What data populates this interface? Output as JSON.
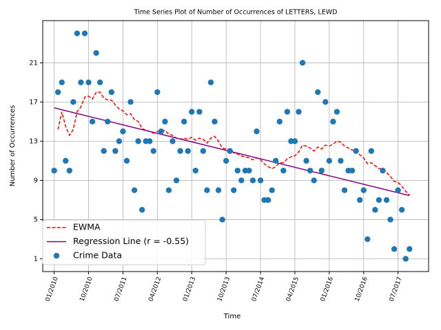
{
  "chart_data": {
    "type": "scatter",
    "title": "Time Series Plot of Number of Occurrences of LETTERS, LEWD",
    "x_label": "Time",
    "y_label": "Number of Occurrences",
    "x": [
      "2010-01",
      "2010-02",
      "2010-03",
      "2010-04",
      "2010-05",
      "2010-06",
      "2010-07",
      "2010-08",
      "2010-09",
      "2010-10",
      "2010-11",
      "2010-12",
      "2011-01",
      "2011-02",
      "2011-03",
      "2011-04",
      "2011-05",
      "2011-06",
      "2011-07",
      "2011-08",
      "2011-09",
      "2011-10",
      "2011-11",
      "2011-12",
      "2012-01",
      "2012-02",
      "2012-03",
      "2012-04",
      "2012-05",
      "2012-06",
      "2012-07",
      "2012-08",
      "2012-09",
      "2012-10",
      "2012-11",
      "2012-12",
      "2013-01",
      "2013-02",
      "2013-03",
      "2013-04",
      "2013-05",
      "2013-06",
      "2013-07",
      "2013-08",
      "2013-09",
      "2013-10",
      "2013-11",
      "2013-12",
      "2014-01",
      "2014-02",
      "2014-03",
      "2014-04",
      "2014-05",
      "2014-06",
      "2014-07",
      "2014-08",
      "2014-09",
      "2014-10",
      "2014-11",
      "2014-12",
      "2015-01",
      "2015-02",
      "2015-03",
      "2015-04",
      "2015-05",
      "2015-06",
      "2015-07",
      "2015-08",
      "2015-09",
      "2015-10",
      "2015-11",
      "2015-12",
      "2016-01",
      "2016-02",
      "2016-03",
      "2016-04",
      "2016-05",
      "2016-06",
      "2016-07",
      "2016-08",
      "2016-09",
      "2016-10",
      "2016-11",
      "2016-12",
      "2017-01",
      "2017-02",
      "2017-03",
      "2017-04",
      "2017-05",
      "2017-06",
      "2017-07",
      "2017-08",
      "2017-09",
      "2017-10"
    ],
    "series": [
      {
        "name": "EWMA",
        "type": "line",
        "color": "#ff0000",
        "linestyle": "dashed",
        "values": [
          null,
          14.2,
          16,
          14.5,
          13.6,
          14.2,
          16,
          16.5,
          17.5,
          17.6,
          17.3,
          18,
          18,
          17.4,
          17.2,
          17.2,
          16.7,
          16.3,
          16.1,
          15.7,
          15.8,
          15.2,
          15,
          14.3,
          14.1,
          14,
          13.8,
          14,
          14,
          14.1,
          13.7,
          13.6,
          13.3,
          13.2,
          13.3,
          13.2,
          13.4,
          13.1,
          13.3,
          13.2,
          12.8,
          13.3,
          13.5,
          13,
          12.3,
          12.2,
          12.2,
          11.8,
          11.7,
          11.5,
          11.4,
          11.3,
          11.1,
          11.3,
          11.1,
          10.7,
          10.4,
          10.2,
          10.4,
          10.8,
          10.8,
          11.2,
          11.4,
          11.5,
          11.9,
          12.6,
          12.5,
          12.3,
          12,
          12.4,
          12.2,
          12.6,
          12.5,
          12.7,
          13,
          12.9,
          12.5,
          12.3,
          12.1,
          12.1,
          11.6,
          11.3,
          10.7,
          10.8,
          10.5,
          10.2,
          10.2,
          9.8,
          9.4,
          8.9,
          8.8,
          8.4,
          7.9,
          7.5
        ]
      },
      {
        "name": "Regression Line (r = -0.55)",
        "type": "line",
        "color": "#800080",
        "linestyle": "solid",
        "x": [
          "2010-01",
          "2017-10"
        ],
        "values": [
          16.4,
          7.45
        ]
      },
      {
        "name": "Crime Data",
        "type": "scatter",
        "color": "#1f77b4",
        "values": [
          10,
          18,
          19,
          11,
          10,
          17,
          24,
          19,
          24,
          19,
          15,
          22,
          19,
          12,
          15,
          18,
          12,
          13,
          14,
          11,
          17,
          8,
          13,
          6,
          13,
          13,
          12,
          18,
          14,
          15,
          8,
          13,
          9,
          12,
          15,
          12,
          16,
          10,
          16,
          12,
          8,
          19,
          15,
          8,
          5,
          11,
          12,
          8,
          10,
          9,
          10,
          10,
          9,
          14,
          9,
          7,
          7,
          8,
          11,
          15,
          10,
          16,
          13,
          13,
          16,
          21,
          11,
          10,
          9,
          18,
          10,
          17,
          11,
          15,
          16,
          11,
          8,
          10,
          10,
          12,
          7,
          8,
          3,
          12,
          6,
          7,
          10,
          7,
          5,
          2,
          8,
          6,
          1,
          2
        ]
      }
    ],
    "xlim": [
      "2009-10",
      "2018-03"
    ],
    "xticks": [
      {
        "value": "2010-01",
        "label": "01/2010"
      },
      {
        "value": "2010-10",
        "label": "10/2010"
      },
      {
        "value": "2011-07",
        "label": "07/2011"
      },
      {
        "value": "2012-04",
        "label": "04/2012"
      },
      {
        "value": "2013-01",
        "label": "01/2013"
      },
      {
        "value": "2013-10",
        "label": "10/2013"
      },
      {
        "value": "2014-07",
        "label": "07/2014"
      },
      {
        "value": "2015-04",
        "label": "04/2015"
      },
      {
        "value": "2016-01",
        "label": "01/2016"
      },
      {
        "value": "2016-10",
        "label": "10/2016"
      },
      {
        "value": "2017-07",
        "label": "07/2017"
      }
    ],
    "ylim": [
      -0.3,
      25.3
    ],
    "yticks": [
      1,
      5,
      9,
      13,
      17,
      21
    ],
    "grid": true,
    "legend": "lower left"
  }
}
